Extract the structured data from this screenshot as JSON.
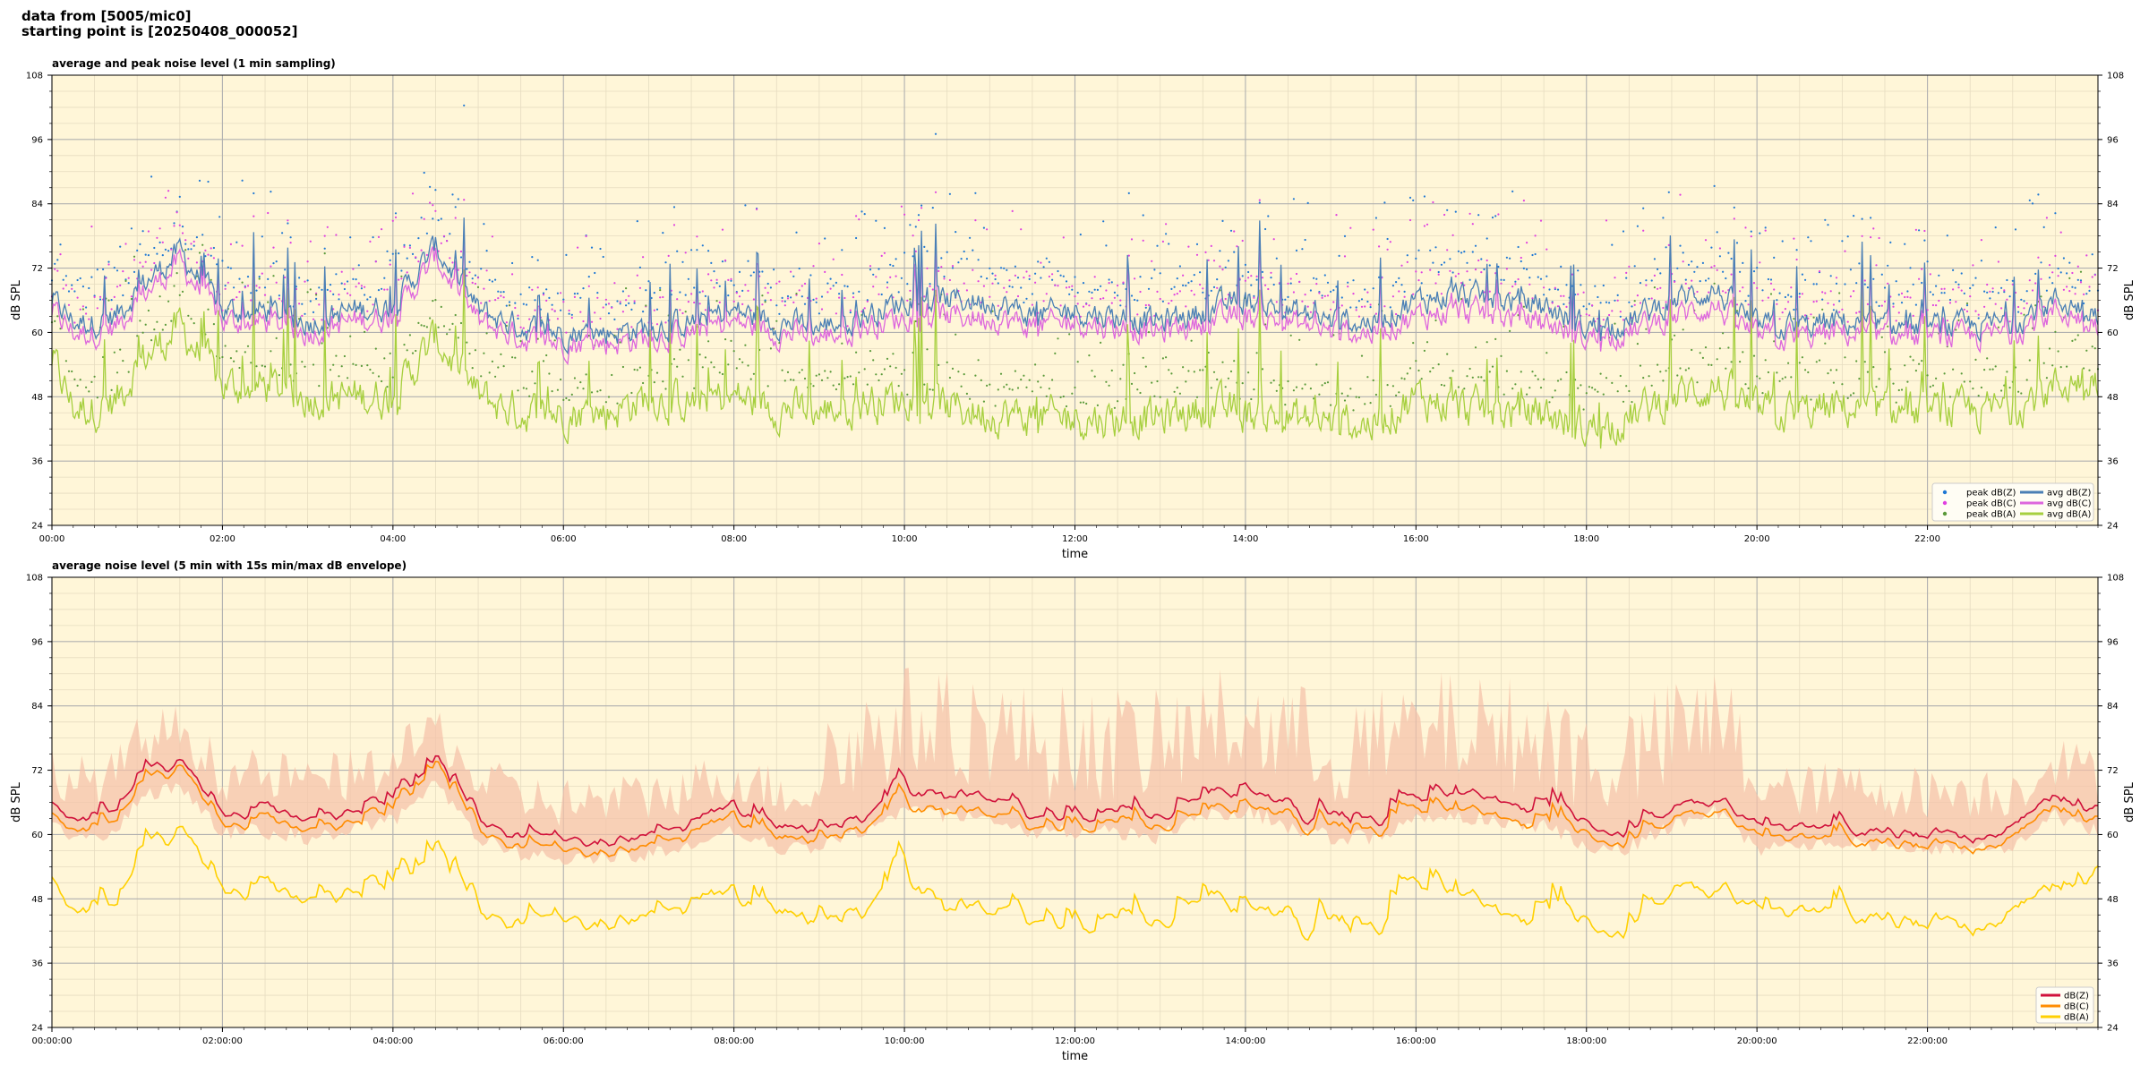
{
  "header": {
    "line1": "data from [5005/mic0]",
    "line2": "starting point is [20250408_000052]"
  },
  "colors": {
    "plot_background": "#fff6d8",
    "grid_major": "#b0b0b0",
    "grid_minor": "#e6dcc0",
    "peak_z": "#1f78d4",
    "peak_c": "#e040e0",
    "peak_a": "#5a9a3a",
    "avg_z": "#4a7fb5",
    "avg_c": "#dd66dd",
    "avg_a": "#a6cf3e",
    "db_z": "#d0103a",
    "db_c": "#ff8c00",
    "db_a": "#ffd000",
    "envelope": "#f5c0a8"
  },
  "chart_data": [
    {
      "type": "line",
      "title": "average and peak noise level (1 min sampling)",
      "xlabel": "time",
      "ylabel": "dB SPL",
      "ylim": [
        24,
        108
      ],
      "xlim_hours": [
        0,
        24
      ],
      "yticks": [
        "24",
        "36",
        "48",
        "60",
        "72",
        "84",
        "96",
        "108"
      ],
      "xticks": [
        "00:00",
        "02:00",
        "04:00",
        "06:00",
        "08:00",
        "10:00",
        "12:00",
        "14:00",
        "16:00",
        "18:00",
        "20:00",
        "22:00"
      ],
      "grid": true,
      "legend_position": "lower-right",
      "legend": [
        "peak dB(Z)",
        "peak dB(C)",
        "peak dB(A)",
        "avg dB(Z)",
        "avg dB(C)",
        "avg dB(A)"
      ],
      "series": [
        {
          "name": "avg dB(Z)",
          "x_hours": [
            0,
            0.25,
            0.5,
            0.75,
            1,
            1.5,
            2,
            2.5,
            3,
            3.5,
            4,
            4.5,
            5,
            5.5,
            6,
            6.5,
            7,
            7.5,
            8,
            8.5,
            9,
            9.5,
            10,
            10.5,
            11,
            11.5,
            12,
            12.5,
            13,
            13.5,
            14,
            14.5,
            15,
            15.5,
            16,
            16.5,
            17,
            17.5,
            18,
            18.5,
            19,
            19.5,
            20,
            20.5,
            21,
            21.5,
            22,
            22.5,
            23,
            23.5,
            24
          ],
          "values": [
            66,
            62,
            62,
            63,
            68,
            75,
            64,
            64,
            62,
            64,
            65,
            76,
            64,
            61,
            60,
            60,
            61,
            62,
            64,
            62,
            61,
            63,
            66,
            66,
            66,
            63,
            64,
            63,
            62,
            64,
            66,
            64,
            62,
            62,
            66,
            67,
            66,
            65,
            61,
            62,
            66,
            68,
            61,
            61,
            62,
            61,
            61,
            61,
            62,
            66,
            64
          ]
        },
        {
          "name": "avg dB(C)",
          "x_hours": [
            0,
            0.25,
            0.5,
            0.75,
            1,
            1.5,
            2,
            2.5,
            3,
            3.5,
            4,
            4.5,
            5,
            5.5,
            6,
            6.5,
            7,
            7.5,
            8,
            8.5,
            9,
            9.5,
            10,
            10.5,
            11,
            11.5,
            12,
            12.5,
            13,
            13.5,
            14,
            14.5,
            15,
            15.5,
            16,
            16.5,
            17,
            17.5,
            18,
            18.5,
            19,
            19.5,
            20,
            20.5,
            21,
            21.5,
            22,
            22.5,
            23,
            23.5,
            24
          ],
          "values": [
            64,
            60,
            60,
            61,
            66,
            73,
            62,
            62,
            60,
            62,
            63,
            74,
            62,
            59,
            58,
            58,
            59,
            60,
            62,
            60,
            59,
            61,
            63,
            63,
            63,
            61,
            62,
            61,
            60,
            62,
            63,
            62,
            60,
            60,
            63,
            64,
            63,
            62,
            59,
            60,
            63,
            65,
            59,
            59,
            60,
            59,
            59,
            59,
            60,
            64,
            62
          ]
        },
        {
          "name": "avg dB(A)",
          "x_hours": [
            0,
            0.25,
            0.5,
            0.75,
            1,
            1.5,
            2,
            2.5,
            3,
            3.5,
            4,
            4.5,
            5,
            5.5,
            6,
            6.5,
            7,
            7.5,
            8,
            8.5,
            9,
            9.5,
            10,
            10.5,
            11,
            11.5,
            12,
            12.5,
            13,
            13.5,
            14,
            14.5,
            15,
            15.5,
            16,
            16.5,
            17,
            17.5,
            18,
            18.5,
            19,
            19.5,
            20,
            20.5,
            21,
            21.5,
            22,
            22.5,
            23,
            23.5,
            24
          ],
          "values": [
            55,
            46,
            46,
            47,
            54,
            61,
            50,
            50,
            48,
            48,
            48,
            59,
            48,
            45,
            45,
            45,
            48,
            47,
            48,
            46,
            45,
            47,
            48,
            46,
            45,
            44,
            44,
            44,
            44,
            46,
            45,
            44,
            43,
            43,
            48,
            46,
            45,
            45,
            42,
            44,
            48,
            50,
            45,
            45,
            46,
            45,
            45,
            45,
            46,
            50,
            52
          ]
        }
      ]
    },
    {
      "type": "line",
      "title": "average noise level (5 min with 15s min/max dB envelope)",
      "xlabel": "time",
      "ylabel": "dB SPL",
      "ylim": [
        24,
        108
      ],
      "xlim_hours": [
        0,
        24
      ],
      "yticks": [
        "24",
        "36",
        "48",
        "60",
        "72",
        "84",
        "96",
        "108"
      ],
      "xticks": [
        "00:00:00",
        "02:00:00",
        "04:00:00",
        "06:00:00",
        "08:00:00",
        "10:00:00",
        "12:00:00",
        "14:00:00",
        "16:00:00",
        "18:00:00",
        "20:00:00",
        "22:00:00"
      ],
      "grid": true,
      "legend_position": "lower-right",
      "legend": [
        "dB(Z)",
        "dB(C)",
        "dB(A)"
      ],
      "series": [
        {
          "name": "dB(Z)",
          "x_hours": [
            0,
            0.25,
            0.5,
            0.75,
            1,
            1.5,
            2,
            2.5,
            3,
            3.5,
            4,
            4.5,
            5,
            5.5,
            6,
            6.5,
            7,
            7.5,
            8,
            8.5,
            9,
            9.5,
            10,
            10.5,
            11,
            11.5,
            12,
            12.5,
            13,
            13.5,
            14,
            14.5,
            15,
            15.5,
            16,
            16.5,
            17,
            17.5,
            18,
            18.5,
            19,
            19.5,
            20,
            20.5,
            21,
            21.5,
            22,
            22.5,
            23,
            23.5,
            24
          ],
          "values": [
            66,
            63,
            63,
            64,
            70,
            73,
            64,
            64,
            63,
            64,
            66,
            73,
            63,
            60,
            59,
            59,
            60,
            62,
            64,
            61,
            61,
            64,
            68,
            67,
            67,
            64,
            64,
            64,
            63,
            67,
            68,
            65,
            63,
            63,
            66,
            67,
            66,
            65,
            61,
            61,
            65,
            68,
            61,
            61,
            62,
            61,
            61,
            61,
            61,
            67,
            64
          ]
        },
        {
          "name": "dB(C)",
          "x_hours": [
            0,
            0.25,
            0.5,
            0.75,
            1,
            1.5,
            2,
            2.5,
            3,
            3.5,
            4,
            4.5,
            5,
            5.5,
            6,
            6.5,
            7,
            7.5,
            8,
            8.5,
            9,
            9.5,
            10,
            10.5,
            11,
            11.5,
            12,
            12.5,
            13,
            13.5,
            14,
            14.5,
            15,
            15.5,
            16,
            16.5,
            17,
            17.5,
            18,
            18.5,
            19,
            19.5,
            20,
            20.5,
            21,
            21.5,
            22,
            22.5,
            23,
            23.5,
            24
          ],
          "values": [
            64,
            61,
            61,
            62,
            68,
            72,
            62,
            62,
            61,
            62,
            64,
            72,
            61,
            58,
            57,
            57,
            58,
            60,
            62,
            59,
            59,
            62,
            65,
            64,
            64,
            62,
            62,
            62,
            61,
            64,
            65,
            63,
            61,
            61,
            64,
            64,
            63,
            62,
            59,
            59,
            63,
            66,
            59,
            59,
            60,
            59,
            59,
            59,
            59,
            65,
            62
          ]
        },
        {
          "name": "dB(A)",
          "x_hours": [
            0,
            0.25,
            0.5,
            0.75,
            1,
            1.5,
            2,
            2.5,
            3,
            3.5,
            4,
            4.5,
            5,
            5.5,
            6,
            6.5,
            7,
            7.5,
            8,
            8.5,
            9,
            9.5,
            10,
            10.5,
            11,
            11.5,
            12,
            12.5,
            13,
            13.5,
            14,
            14.5,
            15,
            15.5,
            16,
            16.5,
            17,
            17.5,
            18,
            18.5,
            19,
            19.5,
            20,
            20.5,
            21,
            21.5,
            22,
            22.5,
            23,
            23.5,
            24
          ],
          "values": [
            52,
            46,
            46,
            46,
            55,
            60,
            50,
            49,
            48,
            49,
            50,
            56,
            46,
            44,
            44,
            44,
            45,
            47,
            47,
            45,
            44,
            47,
            52,
            46,
            46,
            45,
            44,
            44,
            43,
            48,
            46,
            44,
            43,
            43,
            50,
            48,
            45,
            45,
            42,
            43,
            50,
            52,
            45,
            45,
            47,
            45,
            45,
            45,
            45,
            50,
            52
          ]
        }
      ]
    }
  ]
}
